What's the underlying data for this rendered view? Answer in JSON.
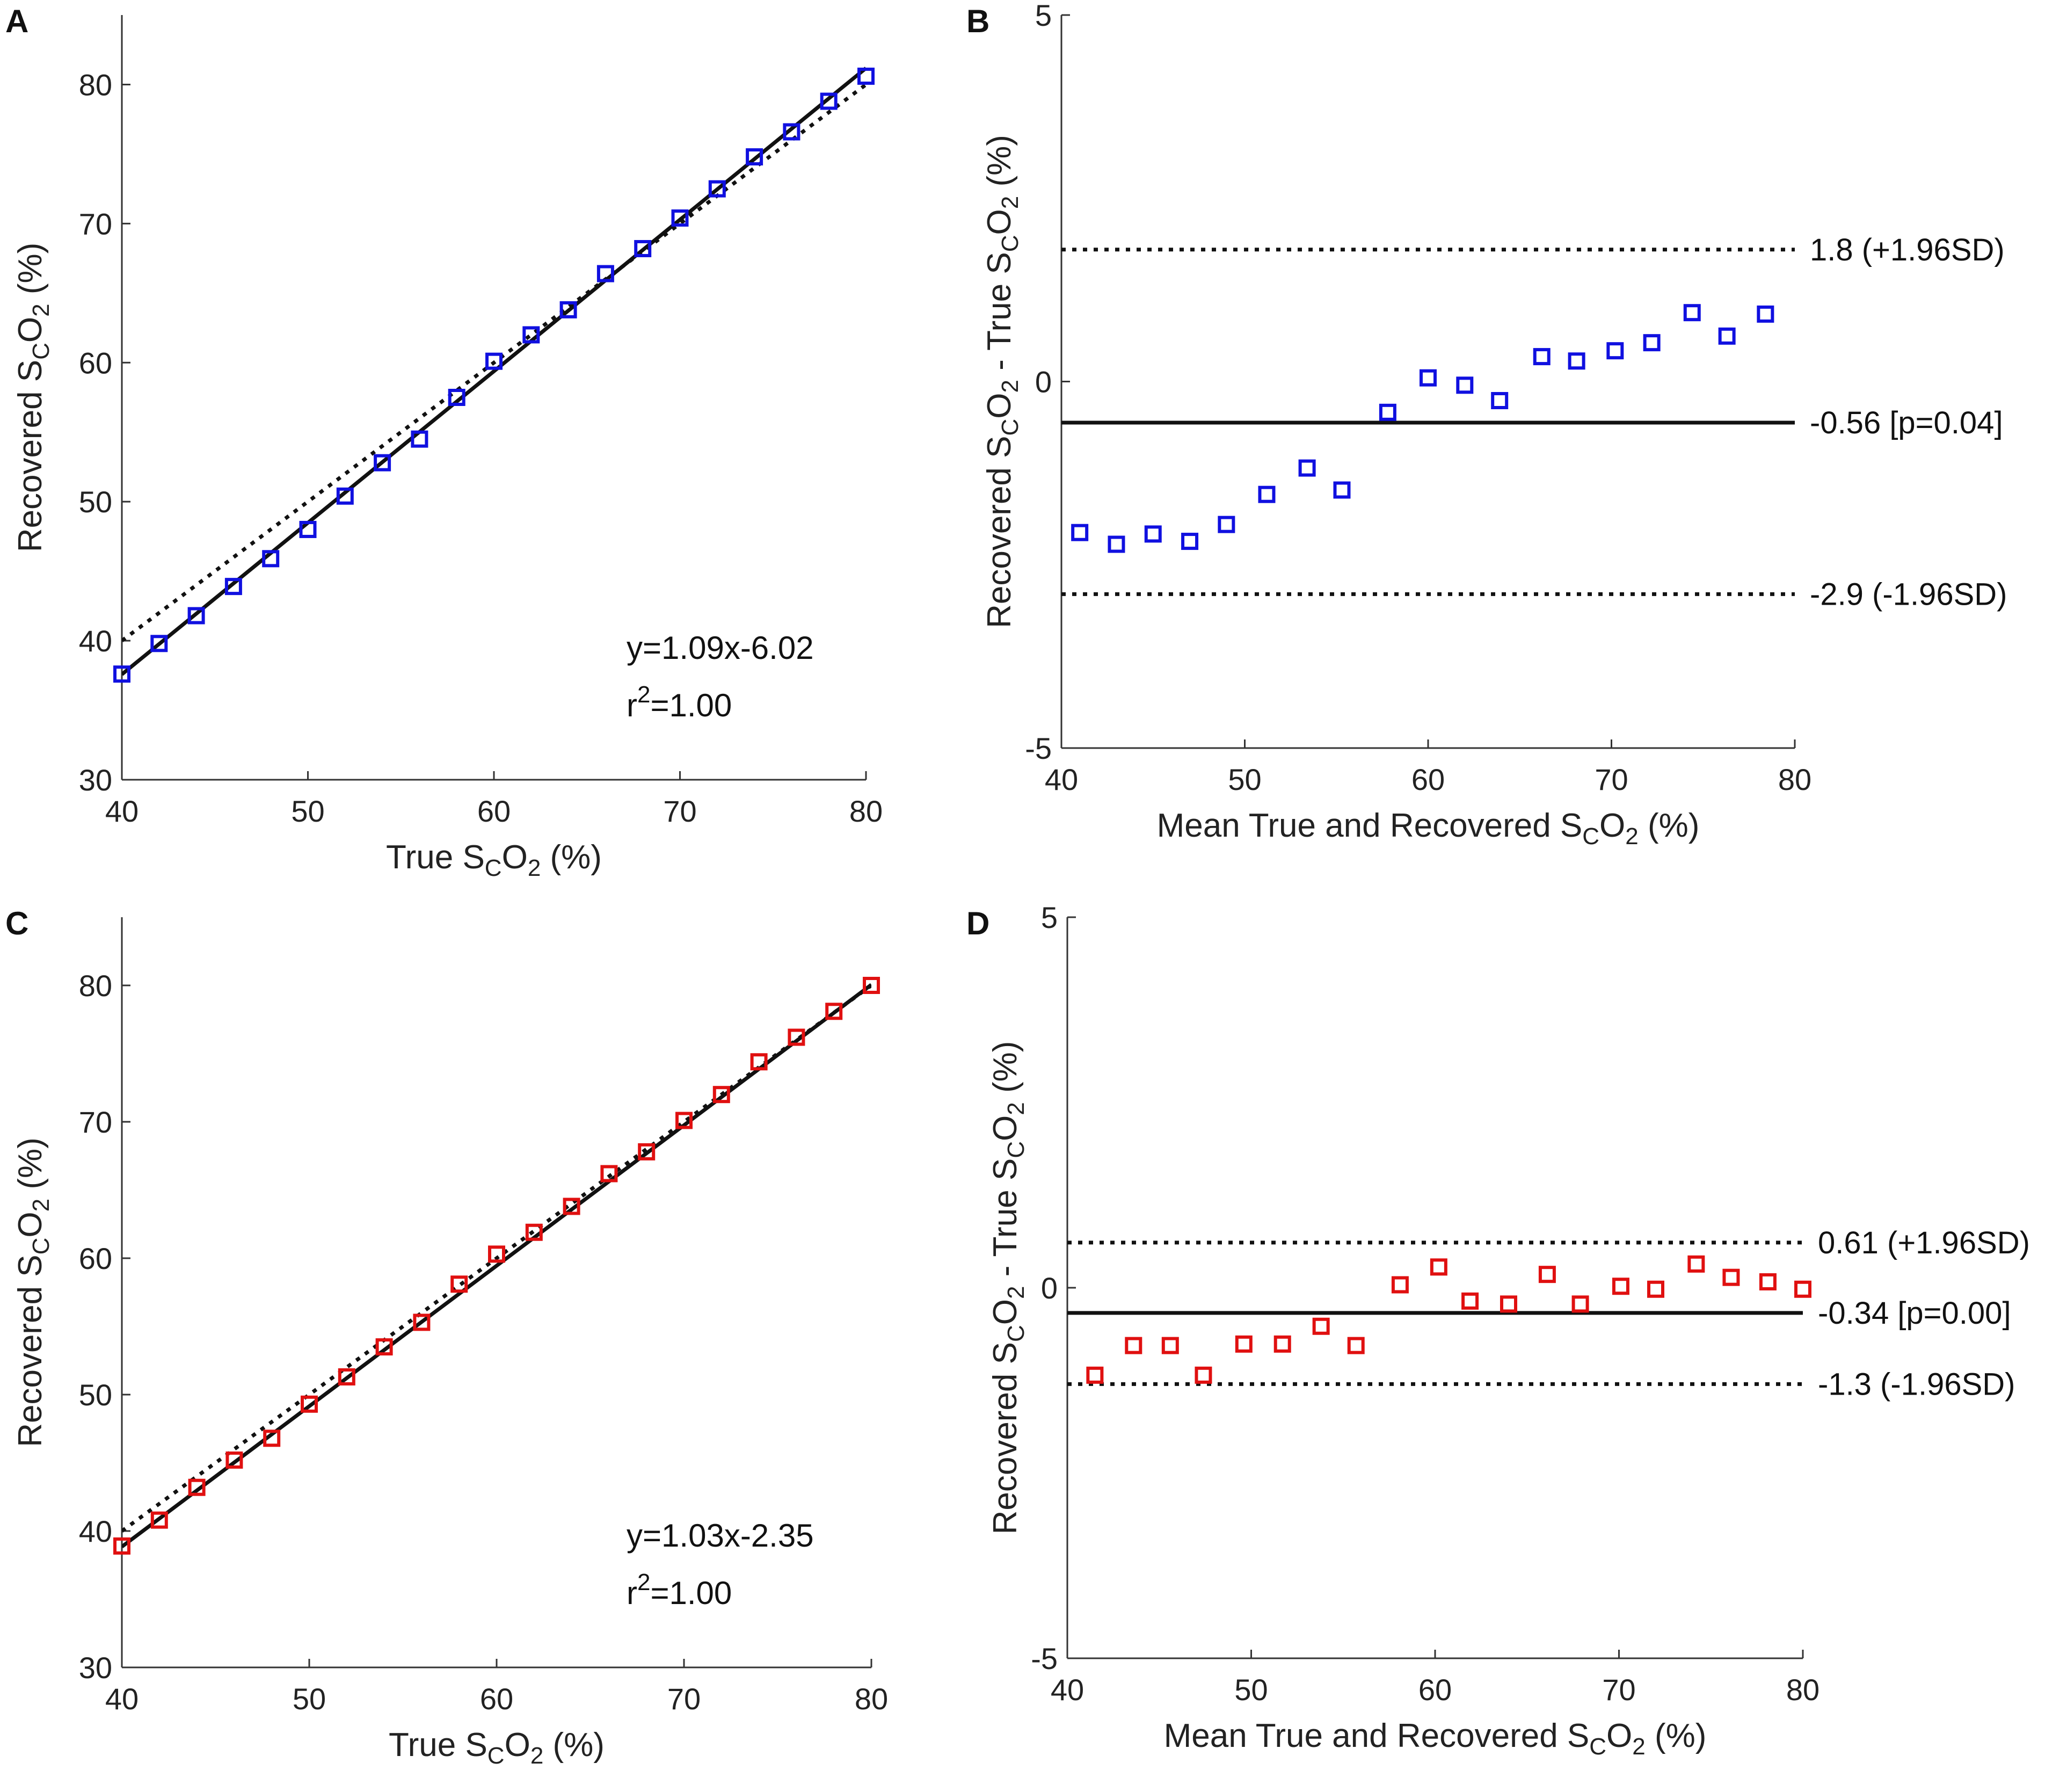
{
  "figure": {
    "panels": [
      {
        "id": "A",
        "label": "A",
        "type": "scatter",
        "xlabel": {
          "main": "True S",
          "sub1": "C",
          "mid": "O",
          "sub2": "2",
          "tail": " (%)"
        },
        "ylabel": {
          "main": "Recovered S",
          "sub1": "C",
          "mid": "O",
          "sub2": "2",
          "tail": " (%)"
        },
        "xlim": [
          40,
          80
        ],
        "ylim": [
          30,
          85
        ],
        "xticks": [
          40,
          50,
          60,
          70,
          80
        ],
        "yticks": [
          30,
          40,
          50,
          60,
          70,
          80
        ],
        "marker_color": "#1010e0",
        "x": [
          40,
          42,
          44,
          46,
          48,
          50,
          52,
          54,
          56,
          58,
          60,
          62,
          64,
          66,
          68,
          70,
          72,
          74,
          76,
          78,
          80
        ],
        "y": [
          37.6,
          39.8,
          41.8,
          43.9,
          45.9,
          48.0,
          50.4,
          52.8,
          54.5,
          57.5,
          60.1,
          62.0,
          63.8,
          66.4,
          68.2,
          70.4,
          72.5,
          74.8,
          76.6,
          78.8,
          80.6
        ],
        "fit": {
          "slope": 1.09,
          "intercept": -6.02
        },
        "identity": true,
        "equation": "y=1.09x-6.02",
        "r2_prefix": "r",
        "r2_sup": "2",
        "r2_value": "=1.00"
      },
      {
        "id": "B",
        "label": "B",
        "type": "bland-altman",
        "xlabel": {
          "main": "Mean True and Recovered S",
          "sub1": "C",
          "mid": "O",
          "sub2": "2",
          "tail": " (%)"
        },
        "ylabel": {
          "main": "Recovered S",
          "sub1": "C",
          "mid": "O",
          "sub2": "2",
          "mid2": " - True S",
          "sub3": "C",
          "mid3": "O",
          "sub4": "2",
          "tail": " (%)"
        },
        "xlim": [
          40,
          80
        ],
        "ylim": [
          -5,
          5
        ],
        "xticks": [
          40,
          50,
          60,
          70,
          80
        ],
        "yticks": [
          -5,
          0,
          5
        ],
        "marker_color": "#1010e0",
        "x": [
          41.0,
          43.0,
          45.0,
          47.0,
          49.0,
          51.2,
          53.4,
          55.3,
          57.8,
          60.0,
          62.0,
          63.9,
          66.2,
          68.1,
          70.2,
          72.2,
          74.4,
          76.3,
          78.4
        ],
        "y": [
          -2.06,
          -2.22,
          -2.08,
          -2.18,
          -1.95,
          -1.54,
          -1.18,
          -1.48,
          -0.42,
          0.05,
          -0.05,
          -0.26,
          0.34,
          0.28,
          0.42,
          0.53,
          0.94,
          0.62,
          0.92
        ],
        "lines": [
          {
            "value": 1.8,
            "style": "dotted",
            "text": "1.8 (+1.96SD)"
          },
          {
            "value": -0.56,
            "style": "solid",
            "text": "-0.56 [p=0.04]"
          },
          {
            "value": -2.9,
            "style": "dotted",
            "text": "-2.9 (-1.96SD)"
          }
        ]
      },
      {
        "id": "C",
        "label": "C",
        "type": "scatter",
        "xlabel": {
          "main": "True S",
          "sub1": "C",
          "mid": "O",
          "sub2": "2",
          "tail": " (%)"
        },
        "ylabel": {
          "main": "Recovered S",
          "sub1": "C",
          "mid": "O",
          "sub2": "2",
          "tail": " (%)"
        },
        "xlim": [
          40,
          80
        ],
        "ylim": [
          30,
          85
        ],
        "xticks": [
          40,
          50,
          60,
          70,
          80
        ],
        "yticks": [
          30,
          40,
          50,
          60,
          70,
          80
        ],
        "marker_color": "#e01010",
        "x": [
          40,
          42,
          44,
          46,
          48,
          50,
          52,
          54,
          56,
          58,
          60,
          62,
          64,
          66,
          68,
          70,
          72,
          74,
          76,
          78,
          80
        ],
        "y": [
          38.9,
          40.8,
          43.2,
          45.2,
          46.8,
          49.3,
          51.3,
          53.5,
          55.3,
          58.1,
          60.3,
          61.9,
          63.8,
          66.2,
          67.8,
          70.1,
          72.0,
          74.4,
          76.2,
          78.1,
          80.0
        ],
        "fit": {
          "slope": 1.03,
          "intercept": -2.35
        },
        "identity": true,
        "equation": "y=1.03x-2.35",
        "r2_prefix": "r",
        "r2_sup": "2",
        "r2_value": "=1.00"
      },
      {
        "id": "D",
        "label": "D",
        "type": "bland-altman",
        "xlabel": {
          "main": "Mean True and Recovered S",
          "sub1": "C",
          "mid": "O",
          "sub2": "2",
          "tail": " (%)"
        },
        "ylabel": {
          "main": "Recovered S",
          "sub1": "C",
          "mid": "O",
          "sub2": "2",
          "mid2": " - True S",
          "sub3": "C",
          "mid3": "O",
          "sub4": "2",
          "tail": " (%)"
        },
        "xlim": [
          40,
          80
        ],
        "ylim": [
          -5,
          5
        ],
        "xticks": [
          40,
          50,
          60,
          70,
          80
        ],
        "yticks": [
          -5,
          0,
          5
        ],
        "marker_color": "#e01010",
        "x": [
          41.5,
          43.6,
          45.6,
          47.4,
          49.6,
          51.7,
          53.8,
          55.7,
          58.1,
          60.2,
          61.9,
          64.0,
          66.1,
          67.9,
          70.1,
          72.0,
          74.2,
          76.1,
          78.1,
          80.0
        ],
        "y": [
          -1.18,
          -0.78,
          -0.78,
          -1.18,
          -0.76,
          -0.76,
          -0.52,
          -0.78,
          0.04,
          0.28,
          -0.18,
          -0.22,
          0.18,
          -0.22,
          0.02,
          -0.02,
          0.32,
          0.14,
          0.08,
          -0.02
        ],
        "lines": [
          {
            "value": 0.61,
            "style": "dotted",
            "text": "0.61 (+1.96SD)"
          },
          {
            "value": -0.34,
            "style": "solid",
            "text": "-0.34 [p=0.00]"
          },
          {
            "value": -1.3,
            "style": "dotted",
            "text": "-1.3 (-1.96SD)"
          }
        ]
      }
    ]
  }
}
